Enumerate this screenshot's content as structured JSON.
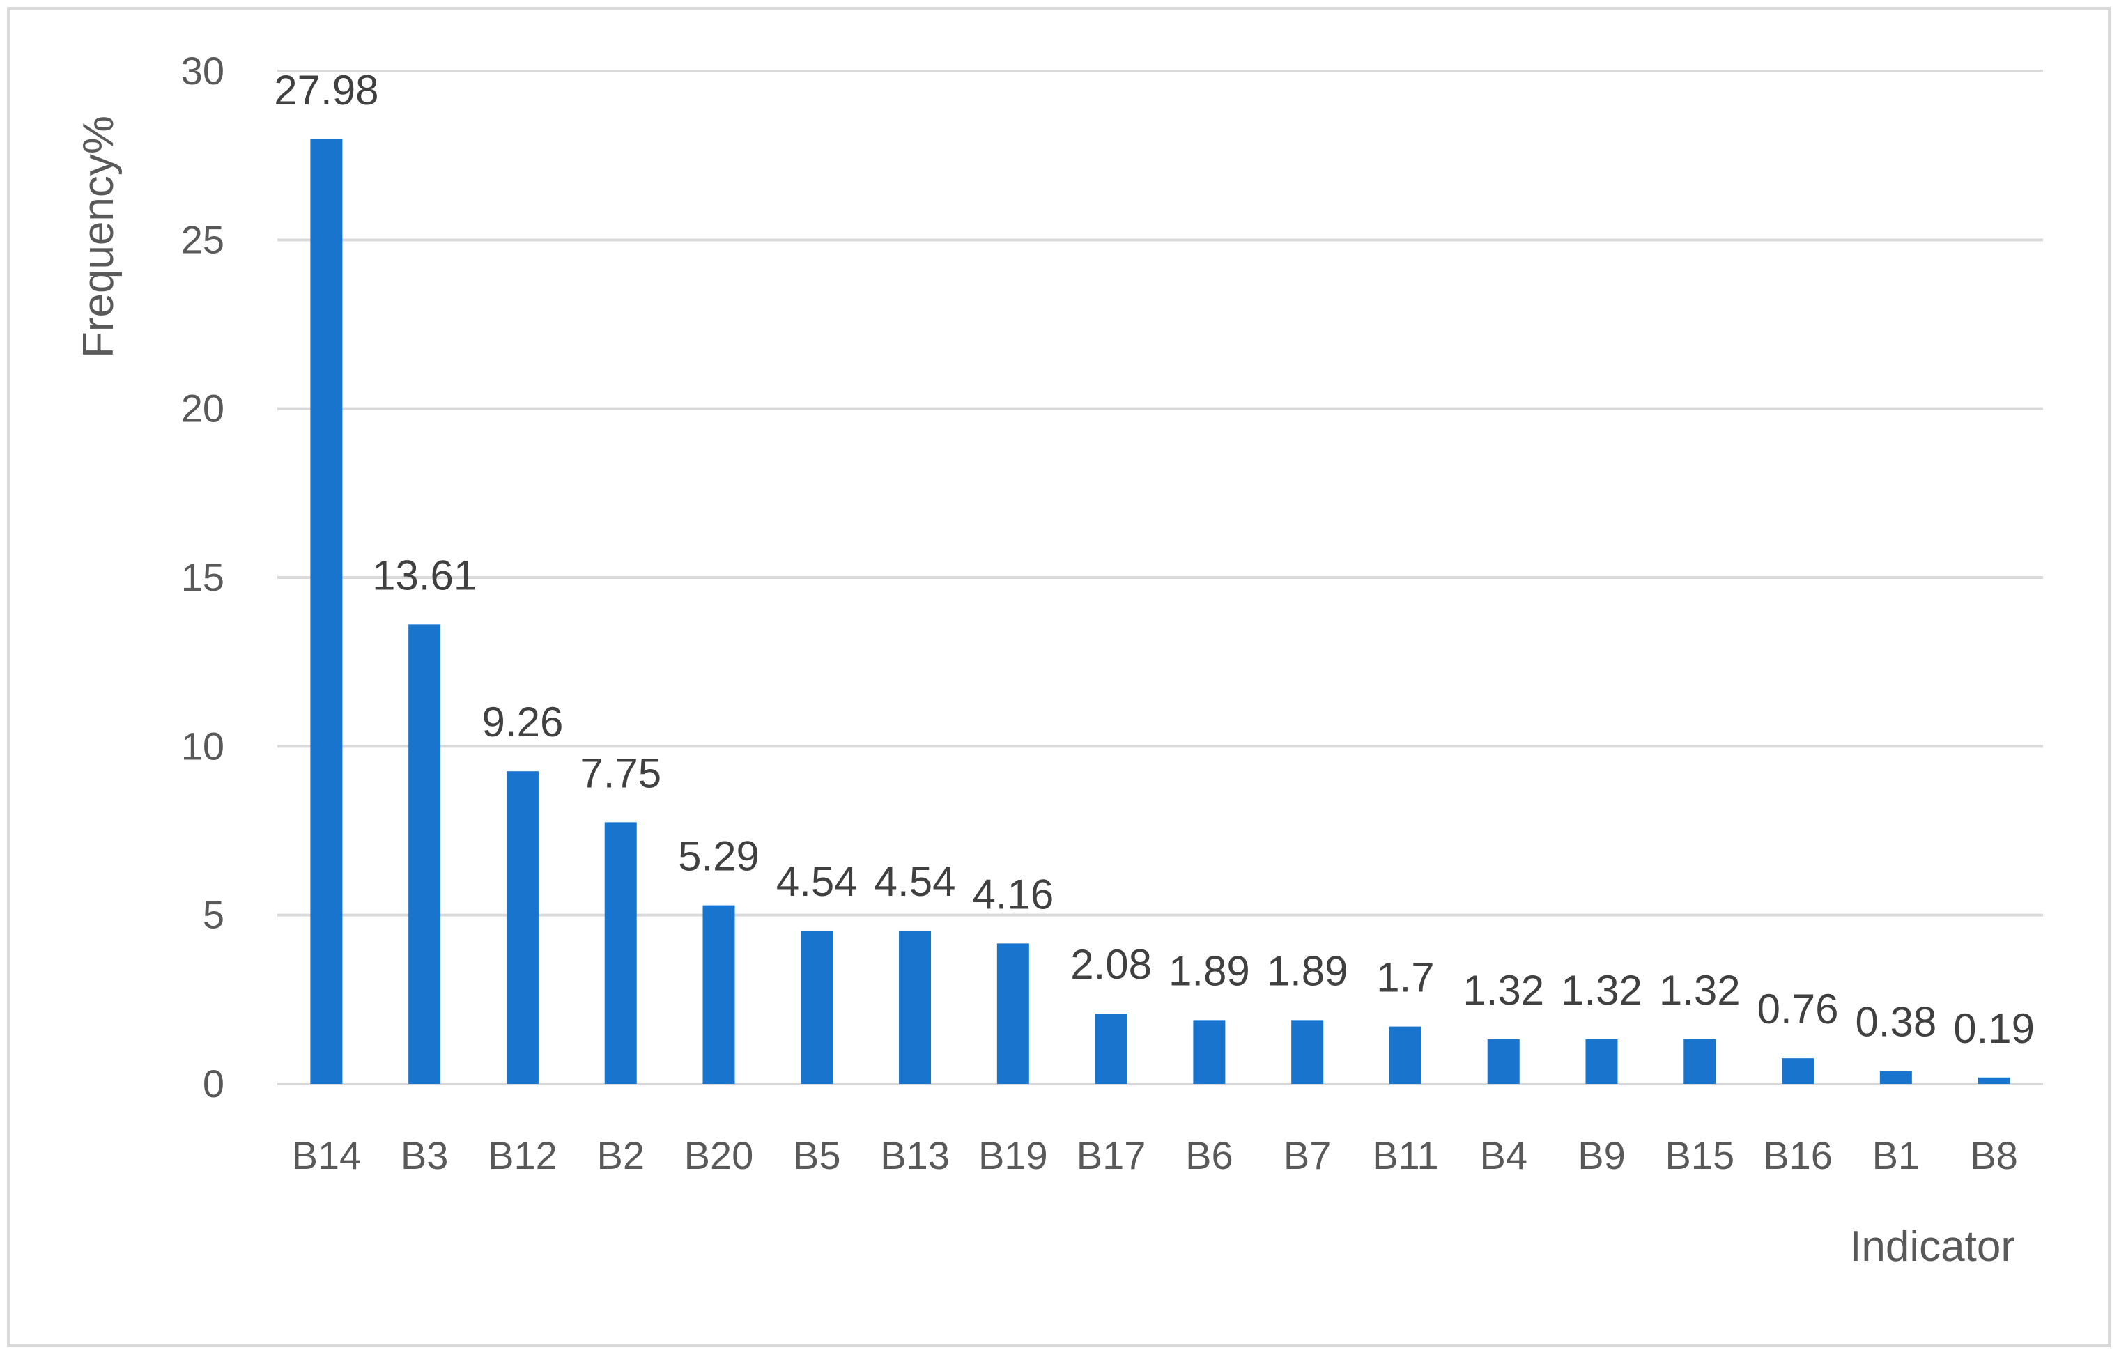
{
  "chart_data": {
    "type": "bar",
    "categories": [
      "B14",
      "B3",
      "B12",
      "B2",
      "B20",
      "B5",
      "B13",
      "B19",
      "B17",
      "B6",
      "B7",
      "B11",
      "B4",
      "B9",
      "B15",
      "B16",
      "B1",
      "B8"
    ],
    "values": [
      27.98,
      13.61,
      9.26,
      7.75,
      5.29,
      4.54,
      4.54,
      4.16,
      2.08,
      1.89,
      1.89,
      1.7,
      1.32,
      1.32,
      1.32,
      0.76,
      0.38,
      0.19
    ],
    "data_labels": [
      "27.98",
      "13.61",
      "9.26",
      "7.75",
      "5.29",
      "4.54",
      "4.54",
      "4.16",
      "2.08",
      "1.89",
      "1.89",
      "1.7",
      "1.32",
      "1.32",
      "1.32",
      "0.76",
      "0.38",
      "0.19"
    ],
    "title": "",
    "xlabel": "Indicator",
    "ylabel": "Frequency%",
    "ylim": [
      0,
      30
    ],
    "yticks": [
      "0",
      "5",
      "10",
      "15",
      "20",
      "25",
      "30"
    ],
    "grid": true,
    "legend": "none",
    "bar_color": "#1874cd",
    "grid_color": "#d9d9d9",
    "text_color": "#595959"
  }
}
